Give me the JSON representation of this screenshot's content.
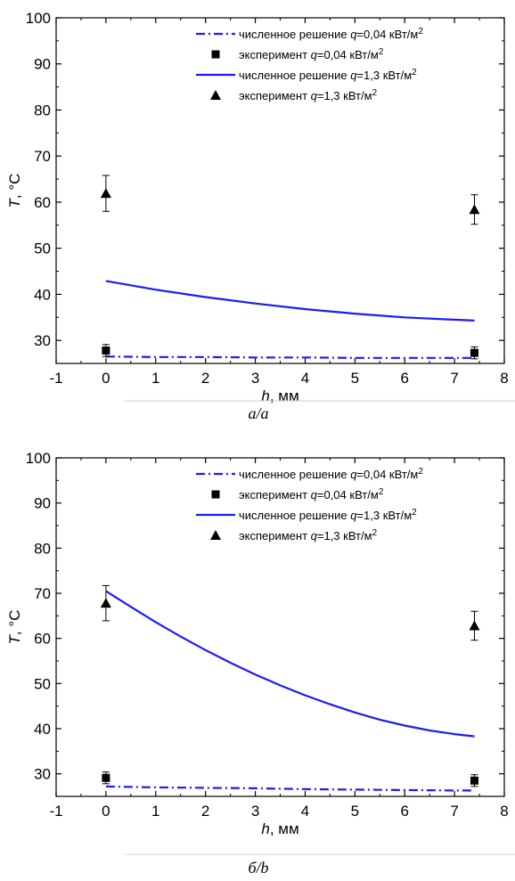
{
  "chart_data": [
    {
      "type": "line",
      "caption": "а/a",
      "xlabel_italic": "h",
      "xlabel_rest": ", мм",
      "ylabel_italic": "T",
      "ylabel_rest": ", °С",
      "xlim": [
        -1,
        8
      ],
      "ylim": [
        25,
        100
      ],
      "xticks": [
        -1,
        0,
        1,
        2,
        3,
        4,
        5,
        6,
        7,
        8
      ],
      "yticks": [
        30,
        40,
        50,
        60,
        70,
        80,
        90,
        100
      ],
      "colors": {
        "line": "#1a1aff",
        "marker": "#000000"
      },
      "legend_position": "top-right",
      "series": [
        {
          "kind": "line",
          "style": "dashdot",
          "legend": {
            "pre": "численное решение ",
            "var": "q",
            "post": "=0,04 кВт/м",
            "sup": "2"
          },
          "x": [
            0,
            1,
            2,
            3,
            4,
            5,
            6,
            7,
            7.4
          ],
          "y": [
            26.5,
            26.4,
            26.4,
            26.3,
            26.3,
            26.2,
            26.2,
            26.2,
            26.2
          ]
        },
        {
          "kind": "scatter",
          "marker": "square",
          "legend": {
            "pre": "эксперимент ",
            "var": "q",
            "post": "=0,04 кВт/м",
            "sup": "2"
          },
          "x": [
            0,
            7.4
          ],
          "y": [
            27.8,
            27.3
          ],
          "err": [
            1.3,
            1.3
          ]
        },
        {
          "kind": "line",
          "style": "solid",
          "legend": {
            "pre": "численное решение ",
            "var": "q",
            "post": "=1,3 кВт/м",
            "sup": "2"
          },
          "x": [
            0,
            1,
            2,
            3,
            4,
            5,
            6,
            7,
            7.4
          ],
          "y": [
            42.9,
            41.0,
            39.4,
            38.0,
            36.8,
            35.8,
            35.0,
            34.5,
            34.3
          ]
        },
        {
          "kind": "scatter",
          "marker": "triangle",
          "legend": {
            "pre": "эксперимент ",
            "var": "q",
            "post": "=1,3 кВт/м",
            "sup": "2"
          },
          "x": [
            0,
            7.4
          ],
          "y": [
            61.9,
            58.4
          ],
          "err": [
            3.9,
            3.2
          ]
        }
      ]
    },
    {
      "type": "line",
      "caption": "б/b",
      "xlabel_italic": "h",
      "xlabel_rest": ", мм",
      "ylabel_italic": "T",
      "ylabel_rest": ", °С",
      "xlim": [
        -1,
        8
      ],
      "ylim": [
        25,
        100
      ],
      "xticks": [
        -1,
        0,
        1,
        2,
        3,
        4,
        5,
        6,
        7,
        8
      ],
      "yticks": [
        30,
        40,
        50,
        60,
        70,
        80,
        90,
        100
      ],
      "colors": {
        "line": "#1a1aff",
        "marker": "#000000"
      },
      "legend_position": "top-right",
      "series": [
        {
          "kind": "line",
          "style": "dashdot",
          "legend": {
            "pre": "численное решение ",
            "var": "q",
            "post": "=0,04 кВт/м",
            "sup": "2"
          },
          "x": [
            0,
            1,
            2,
            3,
            4,
            5,
            6,
            7,
            7.4
          ],
          "y": [
            27.2,
            27.0,
            26.9,
            26.8,
            26.6,
            26.5,
            26.4,
            26.3,
            26.3
          ]
        },
        {
          "kind": "scatter",
          "marker": "square",
          "legend": {
            "pre": "эксперимент ",
            "var": "q",
            "post": "=0,04 кВт/м",
            "sup": "2"
          },
          "x": [
            0,
            7.4
          ],
          "y": [
            29.1,
            28.5
          ],
          "err": [
            1.3,
            1.3
          ]
        },
        {
          "kind": "line",
          "style": "solid",
          "legend": {
            "pre": "численное решение ",
            "var": "q",
            "post": "=1,3 кВт/м",
            "sup": "2"
          },
          "x": [
            0,
            0.5,
            1,
            1.5,
            2,
            2.5,
            3,
            3.5,
            4,
            4.5,
            5,
            5.5,
            6,
            6.5,
            7,
            7.4
          ],
          "y": [
            70.5,
            67.0,
            63.6,
            60.4,
            57.4,
            54.6,
            52.0,
            49.6,
            47.4,
            45.4,
            43.6,
            42.0,
            40.7,
            39.6,
            38.8,
            38.3
          ]
        },
        {
          "kind": "scatter",
          "marker": "triangle",
          "legend": {
            "pre": "эксперимент ",
            "var": "q",
            "post": "=1,3 кВт/м",
            "sup": "2"
          },
          "x": [
            0,
            7.4
          ],
          "y": [
            67.8,
            62.8
          ],
          "err": [
            3.9,
            3.2
          ]
        }
      ]
    }
  ]
}
